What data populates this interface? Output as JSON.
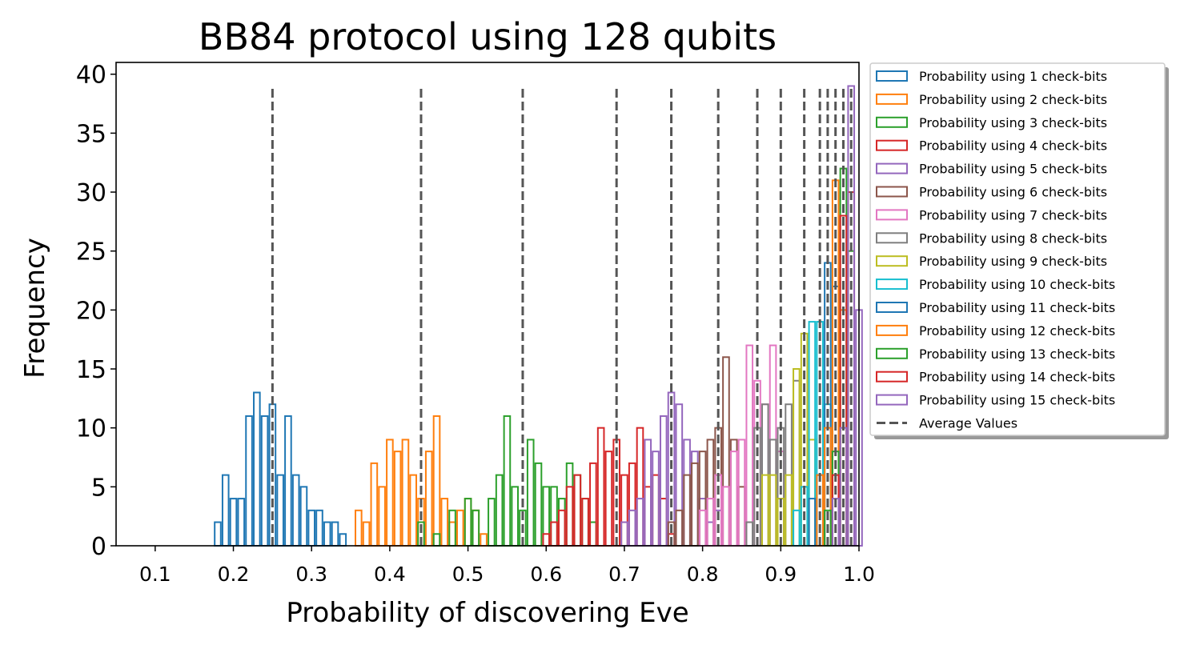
{
  "chart_data": {
    "type": "histogram",
    "title": "BB84 protocol using 128 qubits",
    "xlabel": "Probability of discovering Eve",
    "ylabel": "Frequency",
    "xlim": [
      0.05,
      1.0
    ],
    "ylim": [
      0,
      41
    ],
    "xticks": [
      "0.1",
      "0.2",
      "0.3",
      "0.4",
      "0.5",
      "0.6",
      "0.7",
      "0.8",
      "0.9",
      "1.0"
    ],
    "yticks": [
      "0",
      "5",
      "10",
      "15",
      "20",
      "25",
      "30",
      "35",
      "40"
    ],
    "grid": false,
    "legend_position": "outside-right-top",
    "series": [
      {
        "name": "Probability using 1 check-bits",
        "color": "#1f77b4",
        "average": 0.25,
        "bins": [
          [
            0.18,
            2
          ],
          [
            0.19,
            6
          ],
          [
            0.2,
            4
          ],
          [
            0.21,
            4
          ],
          [
            0.22,
            11
          ],
          [
            0.23,
            13
          ],
          [
            0.24,
            11
          ],
          [
            0.25,
            12
          ],
          [
            0.26,
            6
          ],
          [
            0.27,
            11
          ],
          [
            0.28,
            6
          ],
          [
            0.29,
            5
          ],
          [
            0.3,
            3
          ],
          [
            0.31,
            3
          ],
          [
            0.32,
            2
          ],
          [
            0.33,
            2
          ],
          [
            0.34,
            1
          ]
        ]
      },
      {
        "name": "Probability using 2 check-bits",
        "color": "#ff7f0e",
        "average": 0.44,
        "bins": [
          [
            0.36,
            3
          ],
          [
            0.37,
            2
          ],
          [
            0.38,
            7
          ],
          [
            0.39,
            5
          ],
          [
            0.4,
            9
          ],
          [
            0.41,
            8
          ],
          [
            0.42,
            9
          ],
          [
            0.43,
            6
          ],
          [
            0.44,
            4
          ],
          [
            0.45,
            8
          ],
          [
            0.46,
            11
          ],
          [
            0.47,
            4
          ],
          [
            0.48,
            2
          ],
          [
            0.49,
            3
          ],
          [
            0.5,
            4
          ],
          [
            0.51,
            3
          ],
          [
            0.52,
            1
          ]
        ]
      },
      {
        "name": "Probability using 3 check-bits",
        "color": "#2ca02c",
        "average": 0.57,
        "bins": [
          [
            0.44,
            2
          ],
          [
            0.46,
            1
          ],
          [
            0.48,
            3
          ],
          [
            0.5,
            4
          ],
          [
            0.51,
            3
          ],
          [
            0.53,
            4
          ],
          [
            0.54,
            6
          ],
          [
            0.55,
            11
          ],
          [
            0.56,
            5
          ],
          [
            0.57,
            3
          ],
          [
            0.58,
            9
          ],
          [
            0.59,
            7
          ],
          [
            0.6,
            5
          ],
          [
            0.61,
            5
          ],
          [
            0.62,
            4
          ],
          [
            0.63,
            7
          ],
          [
            0.64,
            6
          ],
          [
            0.65,
            4
          ],
          [
            0.66,
            2
          ]
        ]
      },
      {
        "name": "Probability using 4 check-bits",
        "color": "#d62728",
        "average": 0.69,
        "bins": [
          [
            0.6,
            1
          ],
          [
            0.61,
            2
          ],
          [
            0.62,
            3
          ],
          [
            0.63,
            5
          ],
          [
            0.64,
            6
          ],
          [
            0.65,
            4
          ],
          [
            0.66,
            7
          ],
          [
            0.67,
            10
          ],
          [
            0.68,
            8
          ],
          [
            0.69,
            9
          ],
          [
            0.7,
            6
          ],
          [
            0.71,
            7
          ],
          [
            0.72,
            10
          ],
          [
            0.73,
            5
          ],
          [
            0.74,
            6
          ],
          [
            0.75,
            4
          ],
          [
            0.76,
            1
          ]
        ]
      },
      {
        "name": "Probability using 5 check-bits",
        "color": "#9467bd",
        "average": 0.76,
        "bins": [
          [
            0.7,
            2
          ],
          [
            0.71,
            3
          ],
          [
            0.72,
            4
          ],
          [
            0.73,
            9
          ],
          [
            0.74,
            8
          ],
          [
            0.75,
            11
          ],
          [
            0.76,
            13
          ],
          [
            0.77,
            12
          ],
          [
            0.78,
            9
          ],
          [
            0.79,
            8
          ],
          [
            0.8,
            4
          ],
          [
            0.81,
            2
          ],
          [
            0.82,
            3
          ]
        ]
      },
      {
        "name": "Probability using 6 check-bits",
        "color": "#8c564b",
        "average": 0.82,
        "bins": [
          [
            0.76,
            2
          ],
          [
            0.77,
            3
          ],
          [
            0.78,
            6
          ],
          [
            0.79,
            7
          ],
          [
            0.8,
            8
          ],
          [
            0.81,
            9
          ],
          [
            0.82,
            10
          ],
          [
            0.83,
            16
          ],
          [
            0.84,
            9
          ],
          [
            0.85,
            5
          ],
          [
            0.86,
            2
          ]
        ]
      },
      {
        "name": "Probability using 7 check-bits",
        "color": "#e377c2",
        "average": 0.87,
        "bins": [
          [
            0.8,
            3
          ],
          [
            0.81,
            4
          ],
          [
            0.82,
            6
          ],
          [
            0.83,
            5
          ],
          [
            0.84,
            8
          ],
          [
            0.85,
            9
          ],
          [
            0.86,
            17
          ],
          [
            0.87,
            14
          ],
          [
            0.88,
            12
          ],
          [
            0.89,
            17
          ],
          [
            0.9,
            8
          ]
        ]
      },
      {
        "name": "Probability using 8 check-bits",
        "color": "#7f7f7f",
        "average": 0.9,
        "bins": [
          [
            0.86,
            2
          ],
          [
            0.87,
            10
          ],
          [
            0.88,
            12
          ],
          [
            0.89,
            9
          ],
          [
            0.9,
            10
          ],
          [
            0.91,
            12
          ],
          [
            0.92,
            14
          ]
        ]
      },
      {
        "name": "Probability using 9 check-bits",
        "color": "#bcbd22",
        "average": 0.93,
        "bins": [
          [
            0.88,
            6
          ],
          [
            0.89,
            6
          ],
          [
            0.9,
            4
          ],
          [
            0.91,
            6
          ],
          [
            0.92,
            15
          ],
          [
            0.93,
            18
          ],
          [
            0.94,
            9
          ]
        ]
      },
      {
        "name": "Probability using 10 check-bits",
        "color": "#17becf",
        "average": 0.95,
        "bins": [
          [
            0.92,
            3
          ],
          [
            0.93,
            5
          ],
          [
            0.94,
            19
          ],
          [
            0.95,
            19
          ],
          [
            0.96,
            12
          ]
        ]
      },
      {
        "name": "Probability using 11 check-bits",
        "color": "#1f77b4",
        "average": 0.96,
        "bins": [
          [
            0.94,
            4
          ],
          [
            0.95,
            6
          ],
          [
            0.96,
            24
          ],
          [
            0.97,
            22
          ]
        ]
      },
      {
        "name": "Probability using 12 check-bits",
        "color": "#ff7f0e",
        "average": 0.97,
        "bins": [
          [
            0.95,
            6
          ],
          [
            0.96,
            10
          ],
          [
            0.97,
            31
          ],
          [
            0.98,
            20
          ]
        ]
      },
      {
        "name": "Probability using 13 check-bits",
        "color": "#2ca02c",
        "average": 0.98,
        "bins": [
          [
            0.96,
            3
          ],
          [
            0.97,
            8
          ],
          [
            0.98,
            32
          ],
          [
            0.99,
            25
          ]
        ]
      },
      {
        "name": "Probability using 14 check-bits",
        "color": "#d62728",
        "average": 0.98,
        "bins": [
          [
            0.97,
            6
          ],
          [
            0.98,
            28
          ],
          [
            0.99,
            30
          ]
        ]
      },
      {
        "name": "Probability using 15 check-bits",
        "color": "#9467bd",
        "average": 0.99,
        "bins": [
          [
            0.97,
            4
          ],
          [
            0.98,
            10
          ],
          [
            0.99,
            39
          ],
          [
            1.0,
            20
          ]
        ]
      }
    ],
    "average_lines": {
      "name": "Average Values",
      "color": "#555555",
      "style": "dashed",
      "height": 39,
      "x": [
        0.25,
        0.44,
        0.57,
        0.69,
        0.76,
        0.82,
        0.87,
        0.9,
        0.93,
        0.95,
        0.96,
        0.97,
        0.98,
        0.98,
        0.99
      ]
    }
  }
}
